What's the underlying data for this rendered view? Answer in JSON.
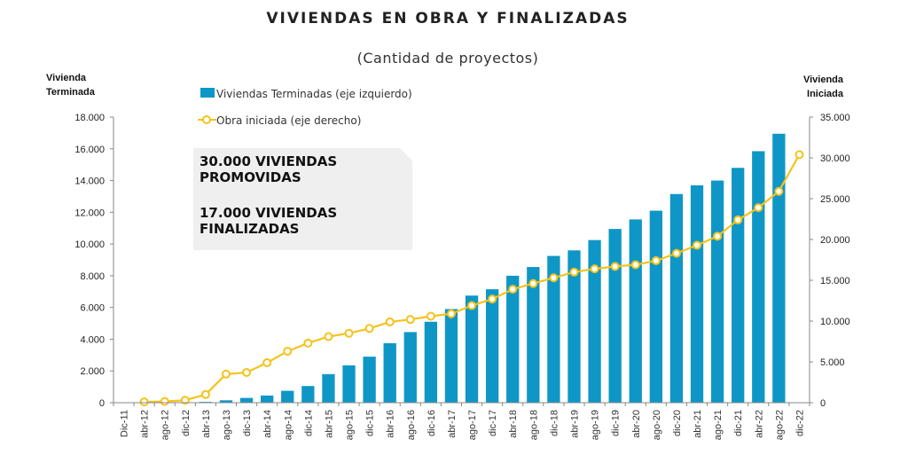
{
  "colors": {
    "bars": "#0e97c6",
    "line": "#f5c31c",
    "note_bg": "#efefef",
    "axis": "#888888"
  },
  "chart_data": {
    "type": "bar",
    "title": "VIVIENDAS EN OBRA Y FINALIZADAS",
    "subtitle": "(Cantidad de proyectos)",
    "ylabel_left": [
      "Vivienda",
      "Terminada"
    ],
    "ylabel_right": [
      "Vivienda",
      "Iniciada"
    ],
    "left_axis": {
      "min": 0,
      "max": 18000,
      "ticks": [
        "0",
        "2.000",
        "4.000",
        "6.000",
        "8.000",
        "10.000",
        "12.000",
        "14.000",
        "16.000",
        "18.000"
      ]
    },
    "right_axis": {
      "min": 0,
      "max": 35000,
      "ticks": [
        "0",
        "5.000",
        "10.000",
        "15.000",
        "20.000",
        "25.000",
        "30.000",
        "35.000"
      ]
    },
    "categories": [
      "Dic-11",
      "abr-12",
      "ago-12",
      "dic-12",
      "abr-13",
      "ago-13",
      "dic-13",
      "abr-14",
      "ago-14",
      "dic-14",
      "abr-15",
      "ago-15",
      "dic-15",
      "abr-16",
      "ago-16",
      "dic-16",
      "abr-17",
      "ago-17",
      "dic-17",
      "abr-18",
      "ago-18",
      "dic-18",
      "abr-19",
      "ago-19",
      "dic-19",
      "abr-20",
      "ago-20",
      "dic-20",
      "abr-21",
      "ago-21",
      "dic-21",
      "abr-22",
      "ago-22",
      "dic-22"
    ],
    "series": [
      {
        "name": "Viviendas Terminadas (eje izquierdo)",
        "type": "bar",
        "axis": "left",
        "values": [
          0,
          0,
          0,
          0,
          50,
          150,
          300,
          450,
          750,
          1050,
          1800,
          2350,
          2900,
          3750,
          4450,
          5100,
          5900,
          6750,
          7150,
          8000,
          8550,
          9250,
          9600,
          10250,
          10950,
          11550,
          12100,
          13150,
          13700,
          14000,
          14800,
          15850,
          16950,
          null
        ]
      },
      {
        "name": "Obra iniciada (eje derecho)",
        "type": "line",
        "axis": "right",
        "values": [
          null,
          100,
          150,
          300,
          1000,
          3500,
          3700,
          4900,
          6300,
          7300,
          8100,
          8500,
          9100,
          9900,
          10200,
          10600,
          10900,
          11900,
          12700,
          13900,
          14600,
          15300,
          16000,
          16400,
          16700,
          16900,
          17400,
          18300,
          19300,
          20400,
          22400,
          23900,
          25900,
          30400
        ]
      }
    ],
    "legend_position": "top-left",
    "grid": false,
    "annotation": [
      "30.000 VIVIENDAS",
      "PROMOVIDAS",
      "17.000 VIVIENDAS",
      "FINALIZADAS"
    ]
  }
}
